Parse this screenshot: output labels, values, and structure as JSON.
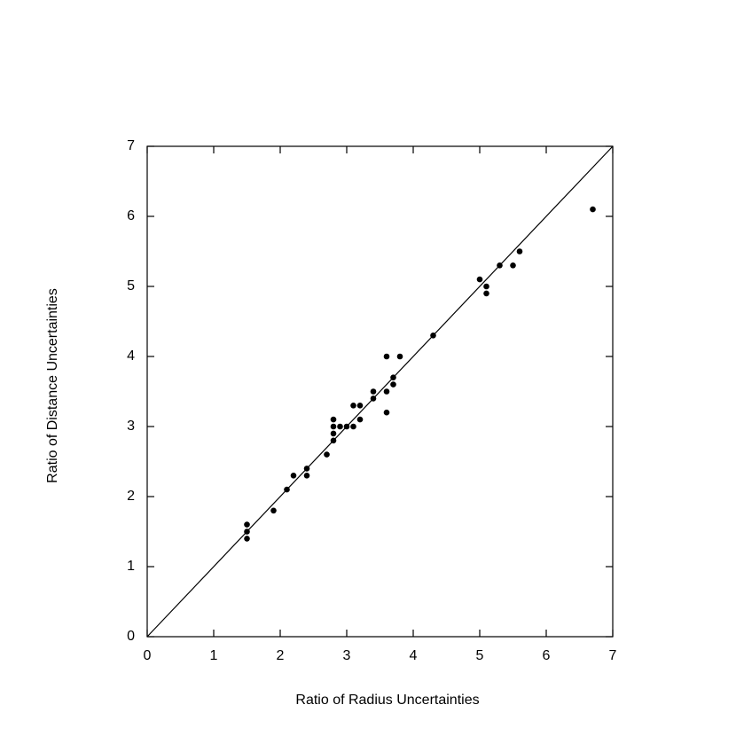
{
  "chart_data": {
    "type": "scatter",
    "x_label": "Ratio of Radius Uncertainties",
    "y_label": "Ratio of Distance Uncertainties",
    "xlim": [
      0,
      7
    ],
    "ylim": [
      0,
      7
    ],
    "xticks": [
      0,
      1,
      2,
      3,
      4,
      5,
      6,
      7
    ],
    "yticks": [
      0,
      1,
      2,
      3,
      4,
      5,
      6,
      7
    ],
    "identity_line": true,
    "mirror_ticks": true,
    "series": [
      {
        "color": "#000000",
        "x": [
          1.5,
          1.5,
          1.5,
          1.9,
          2.1,
          2.2,
          2.4,
          2.4,
          2.7,
          2.8,
          2.8,
          2.8,
          2.8,
          2.9,
          3.0,
          3.1,
          3.1,
          3.2,
          3.2,
          3.4,
          3.4,
          3.6,
          3.6,
          3.6,
          3.7,
          3.7,
          3.8,
          4.3,
          5.0,
          5.1,
          5.1,
          5.3,
          5.5,
          5.6,
          6.7
        ],
        "values": [
          1.6,
          1.5,
          1.4,
          1.8,
          2.1,
          2.3,
          2.4,
          2.3,
          2.6,
          3.1,
          3.0,
          2.9,
          2.8,
          3.0,
          3.0,
          3.3,
          3.0,
          3.3,
          3.1,
          3.5,
          3.4,
          4.0,
          3.5,
          3.2,
          3.7,
          3.6,
          4.0,
          4.3,
          5.1,
          5.0,
          4.9,
          5.3,
          5.3,
          5.5,
          6.1
        ]
      }
    ]
  }
}
